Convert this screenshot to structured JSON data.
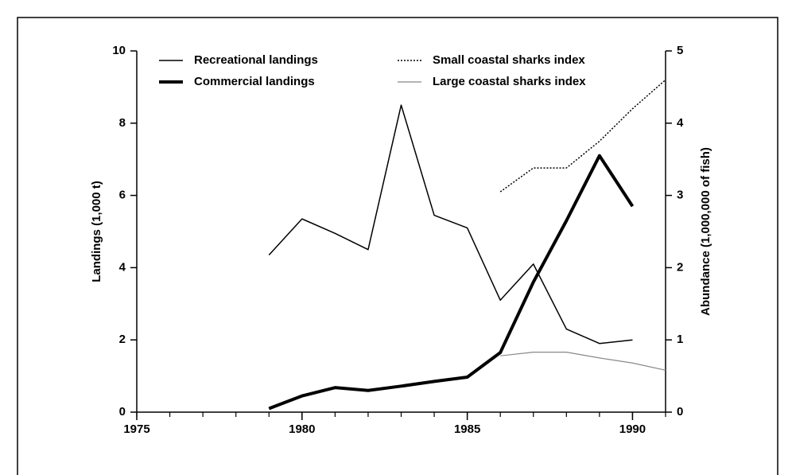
{
  "chart_data": {
    "type": "line",
    "x_label": null,
    "y_label": "Landings (1,000 t)",
    "y2_label": "Abundance (1,000,000 of fish)",
    "xlim": [
      1975,
      1991
    ],
    "xticks": [
      1975,
      1980,
      1985,
      1990
    ],
    "ylim": [
      0,
      10
    ],
    "yticks": [
      0,
      2,
      4,
      6,
      8,
      10
    ],
    "y2lim": [
      0,
      5
    ],
    "y2ticks": [
      0,
      1,
      2,
      3,
      4,
      5
    ],
    "grid": false,
    "series": [
      {
        "name": "Recreational landings",
        "color": "#000000",
        "width": 1.5,
        "dash": "none",
        "x": [
          1979,
          1980,
          1981,
          1982,
          1983,
          1984,
          1985,
          1986,
          1987,
          1988,
          1989,
          1990
        ],
        "values": [
          4.35,
          5.35,
          4.95,
          4.5,
          8.5,
          5.45,
          5.1,
          3.1,
          4.1,
          2.3,
          1.9,
          2.0
        ]
      },
      {
        "name": "Commercial landings",
        "color": "#000000",
        "width": 4,
        "dash": "none",
        "x": [
          1979,
          1980,
          1981,
          1982,
          1983,
          1984,
          1985,
          1986,
          1987,
          1988,
          1989,
          1990
        ],
        "values": [
          0.1,
          0.45,
          0.68,
          0.6,
          0.72,
          0.85,
          0.97,
          1.65,
          3.6,
          5.3,
          7.1,
          5.7
        ]
      },
      {
        "name": "Small coastal sharks index",
        "color": "#000000",
        "width": 1.5,
        "dash": "2 2",
        "axis": "y2",
        "x": [
          1986,
          1987,
          1988,
          1989,
          1990,
          1991
        ],
        "values": [
          3.05,
          3.38,
          3.38,
          3.75,
          4.2,
          4.6
        ]
      },
      {
        "name": "Large coastal sharks index",
        "color": "#888888",
        "width": 1.2,
        "dash": "none",
        "axis": "y2",
        "x": [
          1986,
          1987,
          1988,
          1989,
          1990,
          1991
        ],
        "values": [
          0.78,
          0.83,
          0.83,
          0.75,
          0.68,
          0.58
        ]
      }
    ]
  }
}
